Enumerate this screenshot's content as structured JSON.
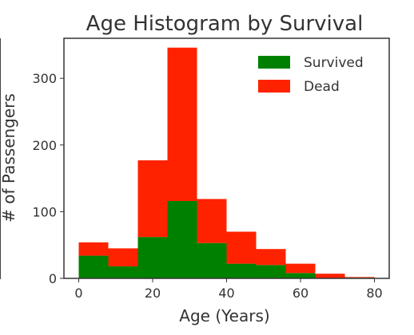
{
  "chart_data": {
    "type": "bar",
    "title": "Age Histogram by Survival",
    "xlabel": "Age (Years)",
    "ylabel": "# of Passengers",
    "xlim": [
      -4,
      84
    ],
    "ylim": [
      0,
      360
    ],
    "x_ticks": [
      0,
      20,
      40,
      60,
      80
    ],
    "y_ticks": [
      0,
      100,
      200,
      300
    ],
    "bin_edges": [
      0,
      8,
      16,
      24,
      32,
      40,
      48,
      56,
      64,
      72,
      80
    ],
    "stacked": true,
    "grid": false,
    "legend_position": "top-right",
    "series": [
      {
        "name": "Survived",
        "color": "#008000",
        "values": [
          34,
          18,
          62,
          116,
          53,
          22,
          20,
          8,
          0,
          1
        ]
      },
      {
        "name": "Dead",
        "color": "#ff2200",
        "values": [
          20,
          27,
          115,
          230,
          66,
          48,
          24,
          14,
          7,
          1
        ]
      }
    ]
  }
}
